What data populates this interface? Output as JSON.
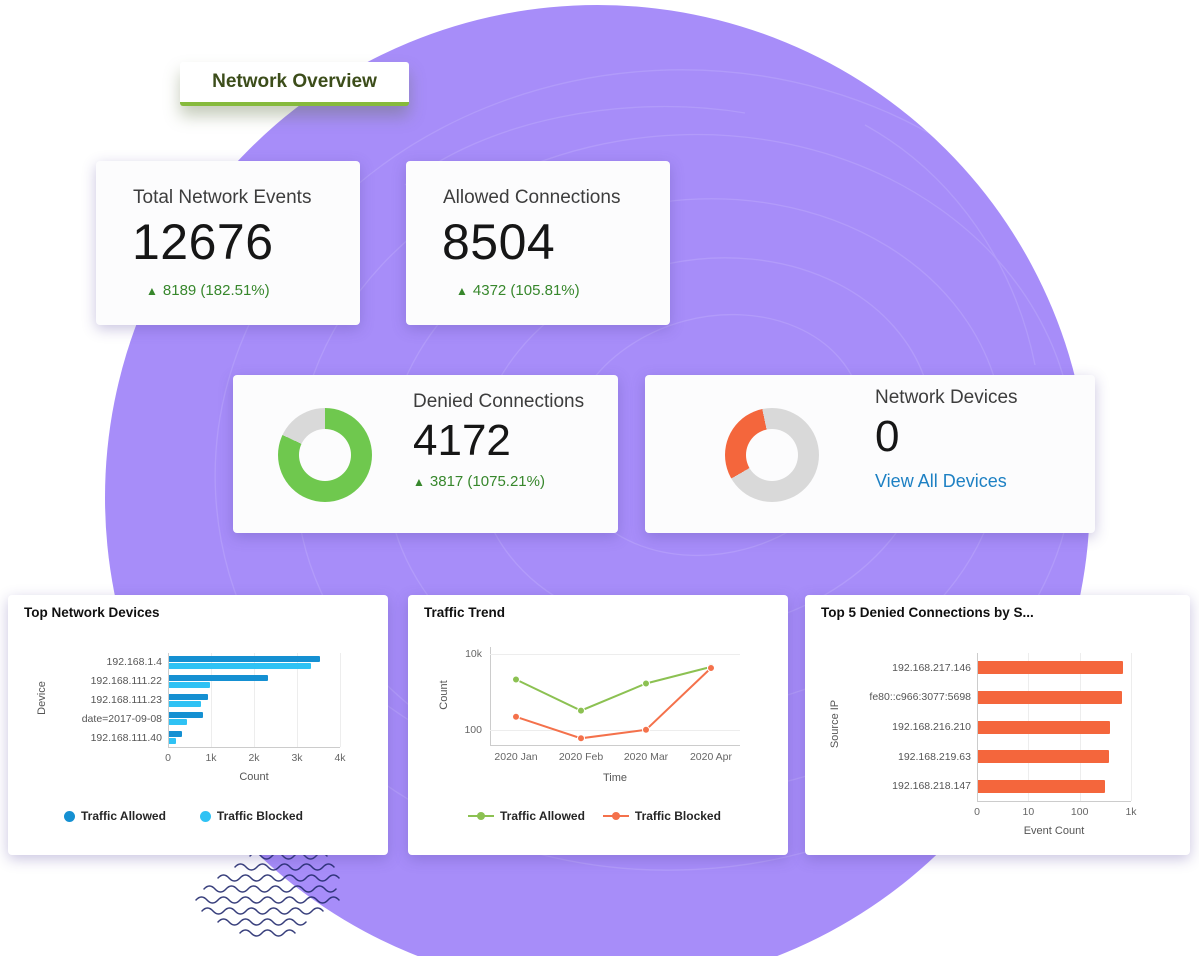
{
  "page": {
    "title": "Network Overview"
  },
  "stat_cards": [
    {
      "title": "Total Network Events",
      "value": "12676",
      "arrow": "▲",
      "delta": "8189 (182.51%)"
    },
    {
      "title": "Allowed Connections",
      "value": "8504",
      "arrow": "▲",
      "delta": "4372 (105.81%)"
    }
  ],
  "donut_cards": [
    {
      "title": "Denied Connections",
      "value": "4172",
      "arrow": "▲",
      "delta": "3817 (1075.21%)",
      "donut": {
        "fraction": 0.82,
        "start_deg": 0,
        "color": "#6fc84e",
        "track": "#d9d9d9"
      }
    },
    {
      "title": "Network Devices",
      "value": "0",
      "link": "View All Devices",
      "donut": {
        "fraction": 0.3,
        "start_deg": 240,
        "color": "#f4663c",
        "track": "#d9d9d9"
      }
    }
  ],
  "chart_data": [
    {
      "type": "bar",
      "orientation": "horizontal",
      "title": "Top Network Devices",
      "categories": [
        "192.168.1.4",
        "192.168.111.22",
        "192.168.111.23",
        "date=2017-09-08",
        "192.168.111.40"
      ],
      "series": [
        {
          "name": "Traffic Allowed",
          "color": "#1590d2",
          "values": [
            3500,
            2300,
            900,
            800,
            300
          ]
        },
        {
          "name": "Traffic Blocked",
          "color": "#2fc2f4",
          "values": [
            3300,
            950,
            750,
            420,
            160
          ]
        }
      ],
      "xlabel": "Count",
      "ylabel": "Device",
      "xticks": [
        "0",
        "1k",
        "2k",
        "3k",
        "4k"
      ],
      "xlim": [
        0,
        4000
      ],
      "xscale": "linear",
      "legend_position": "bottom",
      "grid": true
    },
    {
      "type": "line",
      "title": "Traffic Trend",
      "x": [
        "2020 Jan",
        "2020 Feb",
        "2020 Mar",
        "2020 Apr"
      ],
      "series": [
        {
          "name": "Traffic Allowed",
          "color": "#8cc152",
          "values": [
            2100,
            320,
            1650,
            4500
          ]
        },
        {
          "name": "Traffic Blocked",
          "color": "#f4714b",
          "values": [
            220,
            60,
            100,
            4200
          ]
        }
      ],
      "xlabel": "Time",
      "ylabel": "Count",
      "yticks": [
        "100",
        "10k"
      ],
      "ytick_values": [
        100,
        10000
      ],
      "yscale": "log",
      "ylim": [
        40,
        15000
      ],
      "legend_position": "bottom",
      "grid": true
    },
    {
      "type": "bar",
      "orientation": "horizontal",
      "title": "Top 5 Denied Connections by S...",
      "categories": [
        "192.168.217.146",
        "fe80::c966:3077:5698",
        "192.168.216.210",
        "192.168.219.63",
        "192.168.218.147"
      ],
      "series": [
        {
          "name": "Denied Connections",
          "color": "#f4663c",
          "values": [
            660,
            640,
            380,
            360,
            300
          ]
        }
      ],
      "xlabel": "Event Count",
      "ylabel": "Source IP",
      "xticks": [
        "0",
        "10",
        "100",
        "1k"
      ],
      "xlim": [
        1,
        1000
      ],
      "xscale": "log",
      "grid": true
    }
  ],
  "colors": {
    "accent_purple": "#a78df9",
    "positive_green": "#37872c",
    "link_blue": "#1d80c3",
    "badge_underline_green": "#86ba3c"
  }
}
